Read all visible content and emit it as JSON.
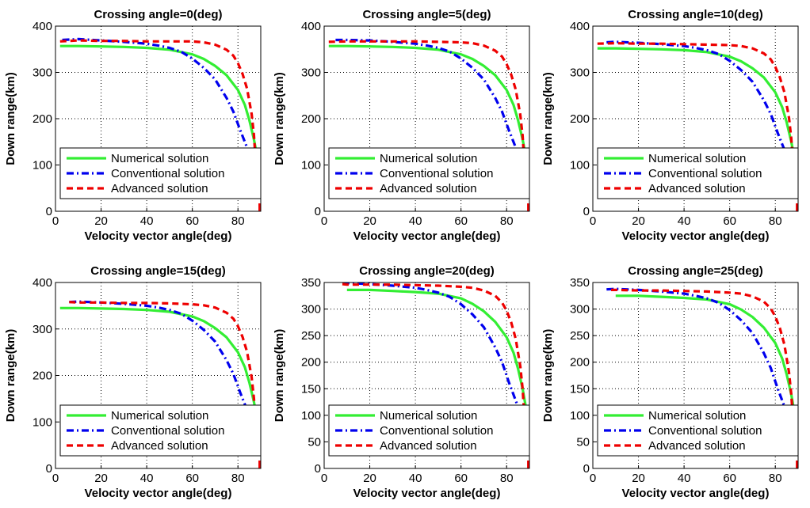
{
  "legend_placement": "bottom-left",
  "series_styles": [
    {
      "name": "Numerical solution",
      "color": "#33ee33",
      "dash": "solid"
    },
    {
      "name": "Conventional solution",
      "color": "#0000ee",
      "dash": "dash-dot"
    },
    {
      "name": "Advanced solution",
      "color": "#ee0000",
      "dash": "dashed"
    }
  ],
  "chart_data": [
    {
      "type": "line",
      "title": "Crossing angle=0(deg)",
      "xlabel": "Velocity vector angle(deg)",
      "ylabel": "Down range(km)",
      "xlim": [
        0,
        90
      ],
      "ylim": [
        0,
        400
      ],
      "xticks": [
        0,
        20,
        40,
        60,
        80
      ],
      "yticks": [
        0,
        100,
        200,
        300,
        400
      ],
      "grid": true,
      "series": [
        {
          "name": "Numerical solution",
          "x": [
            2,
            10,
            20,
            30,
            40,
            50,
            60,
            65,
            70,
            75,
            80,
            83,
            85,
            87,
            88,
            89
          ],
          "y": [
            357,
            357,
            356,
            355,
            353,
            349,
            339,
            329,
            314,
            294,
            262,
            230,
            197,
            155,
            130,
            102
          ]
        },
        {
          "name": "Conventional solution",
          "x": [
            3,
            10,
            20,
            30,
            40,
            45,
            50,
            55,
            60,
            65,
            70,
            75,
            78,
            81,
            83,
            85,
            86.5
          ],
          "y": [
            370,
            372,
            369,
            366,
            362,
            358,
            353,
            345,
            330,
            310,
            285,
            245,
            215,
            175,
            150,
            125,
            102
          ]
        },
        {
          "name": "Advanced solution",
          "x": [
            2,
            10,
            20,
            30,
            40,
            50,
            60,
            65,
            70,
            75,
            78,
            80,
            82,
            84,
            86,
            87,
            87.5
          ],
          "y": [
            367,
            369,
            368,
            368,
            367,
            367,
            367,
            365,
            360,
            349,
            336,
            320,
            297,
            265,
            210,
            165,
            128
          ]
        }
      ]
    },
    {
      "type": "line",
      "title": "Crossing angle=5(deg)",
      "xlabel": "Velocity vector angle(deg)",
      "ylabel": "Down range(km)",
      "xlim": [
        0,
        90
      ],
      "ylim": [
        0,
        400
      ],
      "xticks": [
        0,
        20,
        40,
        60,
        80
      ],
      "yticks": [
        0,
        100,
        200,
        300,
        400
      ],
      "grid": true,
      "series": [
        {
          "name": "Numerical solution",
          "x": [
            2,
            10,
            20,
            30,
            40,
            50,
            60,
            65,
            70,
            75,
            80,
            83,
            85,
            87,
            88,
            89
          ],
          "y": [
            357,
            357,
            356,
            355,
            353,
            349,
            339,
            329,
            314,
            294,
            262,
            230,
            197,
            155,
            130,
            102
          ]
        },
        {
          "name": "Conventional solution",
          "x": [
            5,
            10,
            20,
            30,
            40,
            45,
            50,
            55,
            60,
            65,
            70,
            75,
            78,
            81,
            83,
            85,
            86.5
          ],
          "y": [
            370,
            370,
            369,
            366,
            362,
            358,
            353,
            345,
            330,
            310,
            285,
            245,
            215,
            175,
            150,
            125,
            102
          ]
        },
        {
          "name": "Advanced solution",
          "x": [
            2,
            10,
            20,
            30,
            40,
            50,
            60,
            65,
            70,
            75,
            78,
            80,
            82,
            84,
            86,
            87,
            87.5
          ],
          "y": [
            366,
            367,
            367,
            367,
            367,
            366,
            365,
            363,
            358,
            347,
            334,
            318,
            295,
            263,
            208,
            163,
            126
          ]
        }
      ]
    },
    {
      "type": "line",
      "title": "Crossing angle=10(deg)",
      "xlabel": "Velocity vector angle(deg)",
      "ylabel": "Down range(km)",
      "xlim": [
        0,
        90
      ],
      "ylim": [
        0,
        400
      ],
      "xticks": [
        0,
        20,
        40,
        60,
        80
      ],
      "yticks": [
        0,
        100,
        200,
        300,
        400
      ],
      "grid": true,
      "series": [
        {
          "name": "Numerical solution",
          "x": [
            2,
            10,
            20,
            30,
            40,
            50,
            60,
            65,
            70,
            75,
            80,
            83,
            85,
            87,
            88,
            89
          ],
          "y": [
            352,
            352,
            351,
            350,
            348,
            344,
            334,
            324,
            309,
            289,
            257,
            225,
            192,
            150,
            125,
            98
          ]
        },
        {
          "name": "Conventional solution",
          "x": [
            6,
            10,
            20,
            30,
            40,
            45,
            50,
            55,
            60,
            65,
            70,
            75,
            78,
            81,
            83,
            85,
            86.5
          ],
          "y": [
            365,
            366,
            364,
            361,
            357,
            353,
            348,
            340,
            325,
            305,
            280,
            240,
            210,
            170,
            145,
            120,
            98
          ]
        },
        {
          "name": "Advanced solution",
          "x": [
            2,
            10,
            20,
            30,
            40,
            50,
            60,
            65,
            70,
            75,
            78,
            80,
            82,
            84,
            86,
            87,
            87.5
          ],
          "y": [
            362,
            363,
            362,
            362,
            361,
            360,
            359,
            357,
            352,
            341,
            328,
            312,
            289,
            257,
            202,
            157,
            120
          ]
        }
      ]
    },
    {
      "type": "line",
      "title": "Crossing angle=15(deg)",
      "xlabel": "Velocity vector angle(deg)",
      "ylabel": "Down range(km)",
      "xlim": [
        0,
        90
      ],
      "ylim": [
        0,
        400
      ],
      "xticks": [
        0,
        20,
        40,
        60,
        80
      ],
      "yticks": [
        0,
        100,
        200,
        300,
        400
      ],
      "grid": true,
      "series": [
        {
          "name": "Numerical solution",
          "x": [
            2,
            10,
            20,
            30,
            40,
            50,
            60,
            65,
            70,
            75,
            80,
            83,
            85,
            87,
            88,
            89
          ],
          "y": [
            345,
            345,
            344,
            343,
            341,
            337,
            327,
            317,
            302,
            282,
            250,
            218,
            185,
            143,
            118,
            92
          ]
        },
        {
          "name": "Conventional solution",
          "x": [
            6,
            10,
            20,
            30,
            40,
            45,
            50,
            55,
            60,
            65,
            70,
            75,
            78,
            81,
            83,
            85,
            86.5
          ],
          "y": [
            358,
            359,
            357,
            354,
            350,
            346,
            341,
            333,
            318,
            298,
            273,
            233,
            203,
            163,
            138,
            113,
            92
          ]
        },
        {
          "name": "Advanced solution",
          "x": [
            6,
            10,
            20,
            30,
            40,
            50,
            60,
            65,
            70,
            75,
            78,
            80,
            82,
            84,
            86,
            87,
            87.5
          ],
          "y": [
            358,
            357,
            357,
            356,
            356,
            355,
            353,
            351,
            346,
            335,
            322,
            306,
            283,
            251,
            196,
            151,
            114
          ]
        }
      ]
    },
    {
      "type": "line",
      "title": "Crossing angle=20(deg)",
      "xlabel": "Velocity vector angle(deg)",
      "ylabel": "Down range(km)",
      "xlim": [
        0,
        90
      ],
      "ylim": [
        0,
        350
      ],
      "xticks": [
        0,
        20,
        40,
        60,
        80
      ],
      "yticks": [
        0,
        50,
        100,
        150,
        200,
        250,
        300,
        350
      ],
      "grid": true,
      "series": [
        {
          "name": "Numerical solution",
          "x": [
            10,
            20,
            30,
            40,
            50,
            60,
            65,
            70,
            75,
            80,
            83,
            85,
            87,
            88,
            89
          ],
          "y": [
            336,
            336,
            334,
            332,
            329,
            320,
            310,
            296,
            276,
            247,
            218,
            188,
            150,
            126,
            103
          ]
        },
        {
          "name": "Conventional solution",
          "x": [
            8,
            10,
            20,
            30,
            40,
            45,
            50,
            55,
            60,
            65,
            70,
            75,
            78,
            81,
            83,
            85,
            86.5
          ],
          "y": [
            348,
            349,
            347,
            344,
            340,
            336,
            331,
            323,
            309,
            290,
            266,
            228,
            200,
            162,
            139,
            116,
            103
          ]
        },
        {
          "name": "Advanced solution",
          "x": [
            8,
            10,
            20,
            30,
            40,
            50,
            60,
            65,
            70,
            75,
            78,
            80,
            82,
            84,
            86,
            87,
            87.5
          ],
          "y": [
            347,
            346,
            346,
            346,
            345,
            344,
            342,
            340,
            335,
            325,
            312,
            297,
            275,
            244,
            192,
            150,
            118
          ]
        }
      ]
    },
    {
      "type": "line",
      "title": "Crossing angle=25(deg)",
      "xlabel": "Velocity vector angle(deg)",
      "ylabel": "Down range(km)",
      "xlim": [
        0,
        90
      ],
      "ylim": [
        0,
        350
      ],
      "xticks": [
        0,
        20,
        40,
        60,
        80
      ],
      "yticks": [
        0,
        50,
        100,
        150,
        200,
        250,
        300,
        350
      ],
      "grid": true,
      "series": [
        {
          "name": "Numerical solution",
          "x": [
            10,
            20,
            30,
            40,
            50,
            60,
            65,
            70,
            75,
            80,
            83,
            85,
            87,
            88,
            89
          ],
          "y": [
            325,
            325,
            323,
            321,
            318,
            309,
            299,
            285,
            265,
            236,
            207,
            177,
            139,
            115,
            92
          ]
        },
        {
          "name": "Conventional solution",
          "x": [
            6,
            10,
            20,
            30,
            40,
            45,
            50,
            55,
            60,
            65,
            70,
            75,
            78,
            81,
            83,
            85,
            86.5
          ],
          "y": [
            337,
            338,
            336,
            333,
            329,
            325,
            320,
            312,
            298,
            279,
            255,
            217,
            189,
            151,
            128,
            105,
            92
          ]
        },
        {
          "name": "Advanced solution",
          "x": [
            8,
            10,
            20,
            30,
            40,
            50,
            60,
            65,
            70,
            75,
            78,
            80,
            82,
            84,
            86,
            87,
            87.5
          ],
          "y": [
            336,
            336,
            335,
            335,
            334,
            333,
            331,
            329,
            324,
            314,
            301,
            286,
            264,
            233,
            181,
            139,
            107
          ]
        }
      ]
    }
  ]
}
